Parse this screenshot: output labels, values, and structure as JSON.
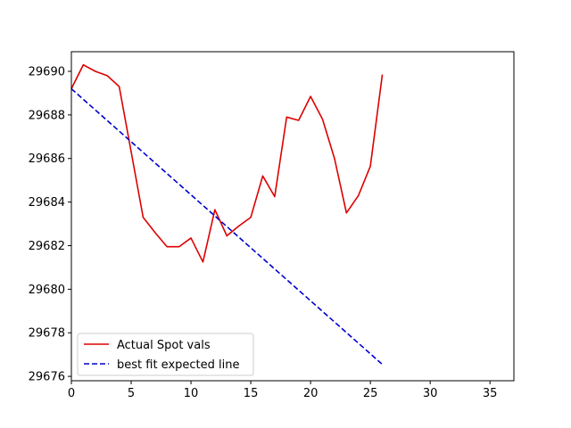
{
  "chart_data": {
    "type": "line",
    "title": "",
    "xlabel": "",
    "ylabel": "",
    "xlim": [
      0,
      37
    ],
    "ylim": [
      29675.8,
      29690.9
    ],
    "x_ticks": [
      0,
      5,
      10,
      15,
      20,
      25,
      30,
      35
    ],
    "y_ticks": [
      29676,
      29678,
      29680,
      29682,
      29684,
      29686,
      29688,
      29690
    ],
    "grid": false,
    "legend_position": "lower-left",
    "series": [
      {
        "name": "Actual Spot vals",
        "style": "solid",
        "color": "#dd0000",
        "x": [
          0,
          1,
          2,
          3,
          4,
          5,
          6,
          7,
          8,
          9,
          10,
          11,
          12,
          13,
          14,
          15,
          16,
          17,
          18,
          19,
          20,
          21,
          22,
          23,
          24,
          25,
          26
        ],
        "values": [
          29689.2,
          29690.3,
          29690.0,
          29689.8,
          29689.3,
          29686.3,
          29683.3,
          29682.6,
          29681.95,
          29681.95,
          29682.35,
          29681.25,
          29683.65,
          29682.45,
          29682.9,
          29683.3,
          29685.2,
          29684.25,
          29687.9,
          29687.75,
          29688.85,
          29687.8,
          29686.0,
          29683.5,
          29684.3,
          29685.65,
          29689.85
        ]
      },
      {
        "name": "best fit expected line",
        "style": "dashed",
        "color": "#0000cc",
        "x": [
          0,
          26
        ],
        "values": [
          29689.2,
          29676.55
        ]
      }
    ]
  }
}
